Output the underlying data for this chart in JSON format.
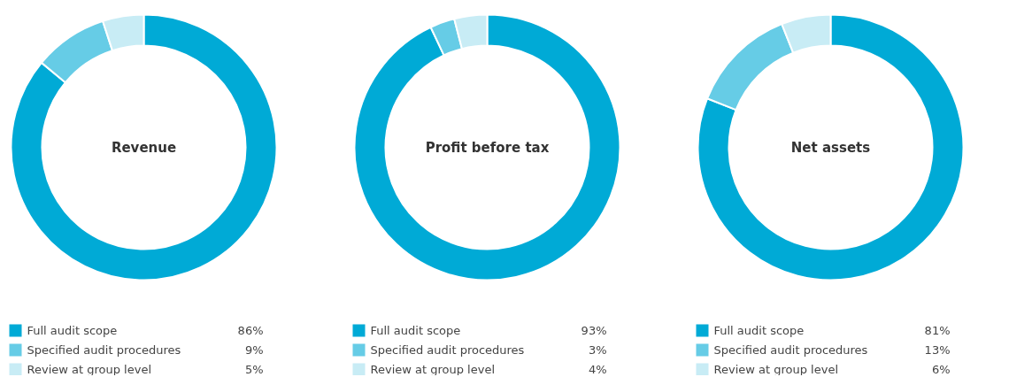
{
  "chart_data": [
    {
      "type": "donut",
      "title": "Revenue",
      "categories": [
        "Full audit scope",
        "Specified audit procedures",
        "Review at group level"
      ],
      "values": [
        86,
        9,
        5
      ],
      "value_labels": [
        "86%",
        "9%",
        "5%"
      ],
      "colors": [
        "#00aad6",
        "#66cce6",
        "#c8ecf5"
      ],
      "legend": "bottom"
    },
    {
      "type": "donut",
      "title": "Profit before tax",
      "categories": [
        "Full audit scope",
        "Specified audit procedures",
        "Review at group level"
      ],
      "values": [
        93,
        3,
        4
      ],
      "value_labels": [
        "93%",
        "3%",
        "4%"
      ],
      "colors": [
        "#00aad6",
        "#66cce6",
        "#c8ecf5"
      ],
      "legend": "bottom"
    },
    {
      "type": "donut",
      "title": "Net assets",
      "categories": [
        "Full audit scope",
        "Specified audit procedures",
        "Review at group level"
      ],
      "values": [
        81,
        13,
        6
      ],
      "value_labels": [
        "81%",
        "13%",
        "6%"
      ],
      "colors": [
        "#00aad6",
        "#66cce6",
        "#c8ecf5"
      ],
      "legend": "bottom"
    }
  ]
}
